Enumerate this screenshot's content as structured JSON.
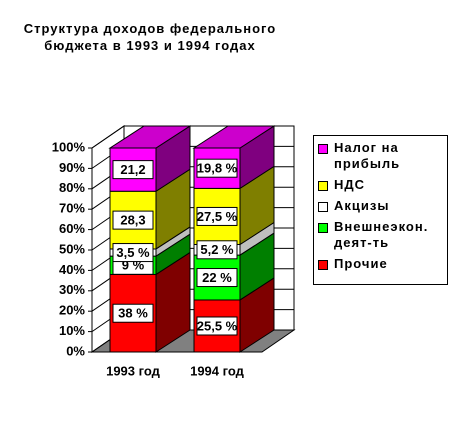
{
  "chart_data": {
    "type": "stacked-bar-3d",
    "title": "Структура доходов федерального бюджета в 1993 и 1994 годах",
    "categories": [
      "1993 год",
      "1994 год"
    ],
    "series": [
      {
        "name": "Прочие",
        "color": "#ff0000",
        "values": [
          38,
          25.5
        ],
        "value_labels": [
          "38 %",
          "25,5 %"
        ]
      },
      {
        "name": "Внешнеэкон. деят-ть",
        "color": "#00ff00",
        "values": [
          9,
          22
        ],
        "value_labels": [
          "9 %",
          "22 %"
        ]
      },
      {
        "name": "Акцизы",
        "color": "#ffffff",
        "values": [
          3.5,
          5.2
        ],
        "value_labels": [
          "3,5 %",
          "5,2 %"
        ]
      },
      {
        "name": "НДС",
        "color": "#ffff00",
        "values": [
          28.3,
          27.5
        ],
        "value_labels": [
          "28,3",
          "27,5 %"
        ]
      },
      {
        "name": "Налог на прибыль",
        "color": "#ff00ff",
        "values": [
          21.2,
          19.8
        ],
        "value_labels": [
          "21,2",
          "19,8 %"
        ]
      }
    ],
    "ylim": [
      0,
      100
    ],
    "yticks": [
      {
        "value": 0,
        "label": "0%"
      },
      {
        "value": 10,
        "label": "10%"
      },
      {
        "value": 20,
        "label": "20%"
      },
      {
        "value": 30,
        "label": "30%"
      },
      {
        "value": 40,
        "label": "40%"
      },
      {
        "value": 50,
        "label": "50%"
      },
      {
        "value": 60,
        "label": "60%"
      },
      {
        "value": 70,
        "label": "70%"
      },
      {
        "value": 80,
        "label": "80%"
      },
      {
        "value": 90,
        "label": "90%"
      },
      {
        "value": 100,
        "label": "100%"
      }
    ],
    "grid": true
  }
}
